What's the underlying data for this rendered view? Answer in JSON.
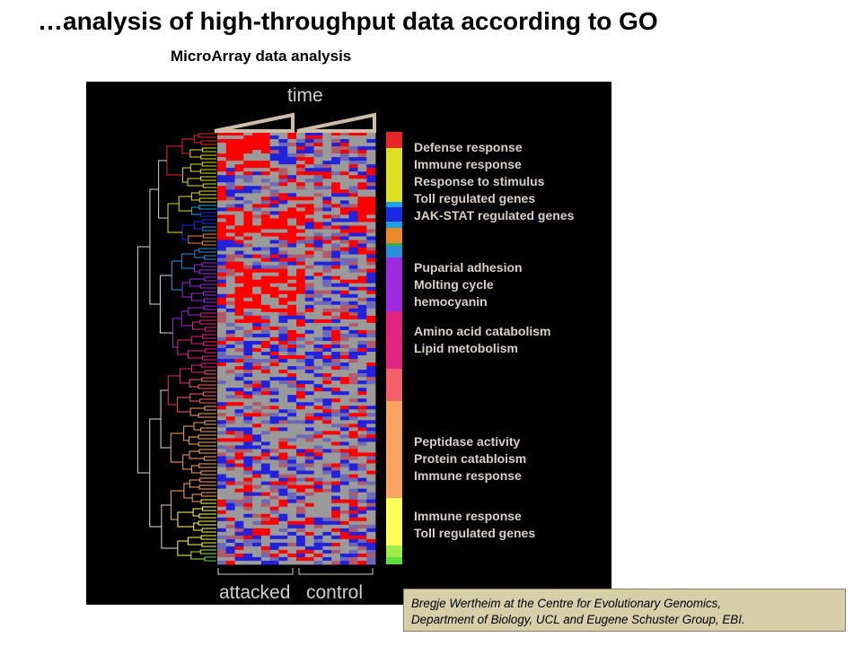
{
  "header": {
    "title": "…analysis of high-throughput data according to GO",
    "subtitle": "MicroArray data analysis"
  },
  "figure": {
    "time_label": "time",
    "attacked_label": "attacked",
    "control_label": "control",
    "cluster_colors": [
      "#e8262a",
      "#dede22",
      "#1e9fe0",
      "#1c2ae6",
      "#e88a28",
      "#31b548",
      "#2c8fdc",
      "#9b2ae0",
      "#e2257f",
      "#f5606a",
      "#f9a362",
      "#fefe5a",
      "#9fec4a",
      "#5ede3a"
    ],
    "heatmap_colors": {
      "high": "#ff0000",
      "low": "#2222dd",
      "neutral": "#9a9a9a"
    },
    "go_groups": [
      {
        "terms": [
          "Defense response",
          "Immune response",
          "Response to stimulus",
          "Toll regulated genes",
          "JAK-STAT regulated genes"
        ]
      },
      {
        "terms": [
          "Puparial adhesion",
          "Molting cycle",
          "hemocyanin"
        ]
      },
      {
        "terms": [
          "Amino acid catabolism",
          "Lipid metobolism"
        ]
      },
      {
        "terms": [
          "Peptidase activity",
          "Protein catabloism",
          "Immune response"
        ]
      },
      {
        "terms": [
          "Immune response",
          "Toll regulated genes"
        ]
      }
    ]
  },
  "credit": {
    "line1": "Bregje Wertheim at the Centre for Evolutionary Genomics,",
    "line2": "Department of Biology, UCL and Eugene Schuster Group, EBI."
  }
}
